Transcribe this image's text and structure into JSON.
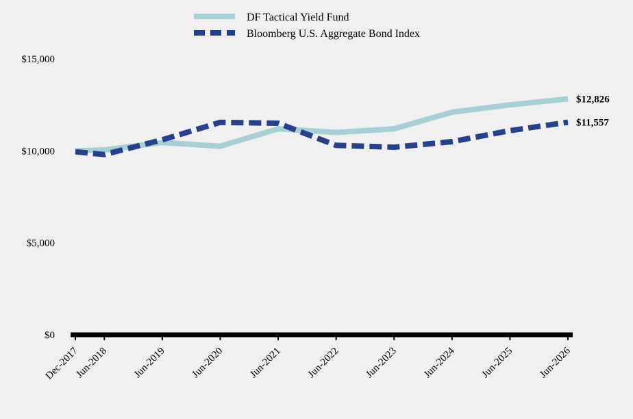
{
  "chart_data": {
    "type": "line",
    "x": [
      "Dec-2017",
      "Jun-2018",
      "Jun-2019",
      "Jun-2020",
      "Jun-2021",
      "Jun-2022",
      "Jun-2023",
      "Jun-2024",
      "Jun-2025",
      "Jun-2026"
    ],
    "ylim": [
      0,
      15000
    ],
    "yticks": [
      0,
      5000,
      10000,
      15000
    ],
    "ytick_labels": [
      "$0",
      "$5,000",
      "$10,000",
      "$15,000"
    ],
    "grid": false,
    "legend_position": "top",
    "series": [
      {
        "name": "DF Tactical Yield Fund",
        "color": "#a6d0d6",
        "style": "solid",
        "values": [
          10000,
          10050,
          10450,
          10250,
          11200,
          11000,
          11200,
          12100,
          12500,
          12826
        ],
        "end_label": "$12,826"
      },
      {
        "name": "Bloomberg U.S. Aggregate Bond Index",
        "color": "#27408b",
        "style": "dashed",
        "values": [
          9950,
          9800,
          10600,
          11550,
          11500,
          10300,
          10200,
          10500,
          11100,
          11557
        ],
        "end_label": "$11,557"
      }
    ]
  }
}
